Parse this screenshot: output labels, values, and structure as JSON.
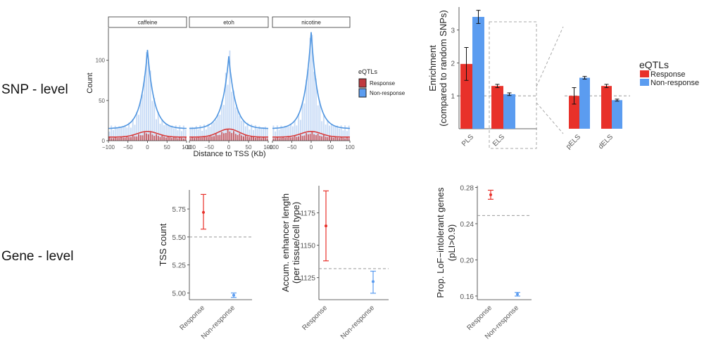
{
  "row_labels": {
    "snp": "SNP - level",
    "gene": "Gene - level"
  },
  "colors": {
    "response": "#e8312a",
    "non_response": "#5b9cf0",
    "response_line": "#d93a3a",
    "non_response_line": "#4f95e0",
    "bar_bg": "#c9dcf6",
    "bar_resp": "#c0393f"
  },
  "chart_data": [
    {
      "id": "tss_distance",
      "type": "area",
      "facets": [
        "caffeine",
        "etoh",
        "nicotine"
      ],
      "xlabel": "Distance to TSS (Kb)",
      "ylabel": "Count",
      "xlim": [
        -100,
        100
      ],
      "ylim": [
        0,
        140
      ],
      "xticks": [
        -100,
        -50,
        0,
        50,
        100
      ],
      "yticks": [
        0,
        50,
        100
      ],
      "legend": {
        "title": "eQTLs",
        "entries": [
          "Response",
          "Non-response"
        ],
        "position": "right"
      },
      "peaks": {
        "non_response": [
          113,
          105,
          135
        ],
        "response": [
          10,
          13,
          10
        ]
      },
      "baseline": {
        "non_response": 15,
        "response": 3
      }
    },
    {
      "id": "enrichment",
      "type": "bar",
      "ylabel": "Enrichment",
      "ylabel2": "(compared to random SNPs)",
      "yticks": [
        1,
        2,
        3
      ],
      "ylim": [
        0,
        3.7
      ],
      "reference_line": 1,
      "legend": {
        "title": "eQTLs",
        "entries": [
          "Response",
          "Non-response"
        ],
        "position": "right"
      },
      "main": {
        "categories": [
          "PLS",
          "ELS"
        ],
        "series": [
          {
            "name": "Response",
            "values": [
              1.97,
              1.3
            ],
            "err": [
              0.5,
              0.05
            ]
          },
          {
            "name": "Non-response",
            "values": [
              3.4,
              1.05
            ],
            "err": [
              0.2,
              0.04
            ]
          }
        ]
      },
      "inset": {
        "categories": [
          "pELS",
          "dELS"
        ],
        "series": [
          {
            "name": "Response",
            "values": [
              1.0,
              1.3
            ],
            "err": [
              0.25,
              0.05
            ]
          },
          {
            "name": "Non-response",
            "values": [
              1.55,
              0.87
            ],
            "err": [
              0.04,
              0.03
            ]
          }
        ]
      }
    },
    {
      "id": "tss_count",
      "type": "scatter",
      "ylabel": "TSS count",
      "categories": [
        "Response",
        "Non-response"
      ],
      "values": [
        5.72,
        4.98
      ],
      "lower": [
        5.57,
        4.96
      ],
      "upper": [
        5.88,
        5.0
      ],
      "ylim": [
        4.94,
        5.92
      ],
      "yticks": [
        5.0,
        5.25,
        5.5,
        5.75
      ],
      "ytick_labels": [
        "5.00",
        "5.25",
        "5.50",
        "5.75"
      ],
      "reference_line": 5.5
    },
    {
      "id": "enhancer_length",
      "type": "scatter",
      "ylabel": "Accum. enhancer length",
      "ylabel2": "(per tissue/cell type)",
      "categories": [
        "Response",
        "Non-response"
      ],
      "values": [
        1165,
        1122
      ],
      "lower": [
        1138,
        1113
      ],
      "upper": [
        1192,
        1130
      ],
      "ylim": [
        1108,
        1196
      ],
      "yticks": [
        1125,
        1150,
        1175
      ],
      "ytick_labels": [
        "1125",
        "1150",
        "1175"
      ],
      "reference_line": 1132
    },
    {
      "id": "lof_intolerant",
      "type": "scatter",
      "ylabel": "Prop. LoF−intolerant genes",
      "ylabel2": "(pLI>0.9)",
      "categories": [
        "Response",
        "Non-response"
      ],
      "values": [
        0.272,
        0.162
      ],
      "lower": [
        0.267,
        0.16
      ],
      "upper": [
        0.277,
        0.164
      ],
      "ylim": [
        0.156,
        0.282
      ],
      "yticks": [
        0.16,
        0.2,
        0.24,
        0.28
      ],
      "ytick_labels": [
        "0.16",
        "0.20",
        "0.24",
        "0.28"
      ],
      "reference_line": 0.249
    }
  ]
}
